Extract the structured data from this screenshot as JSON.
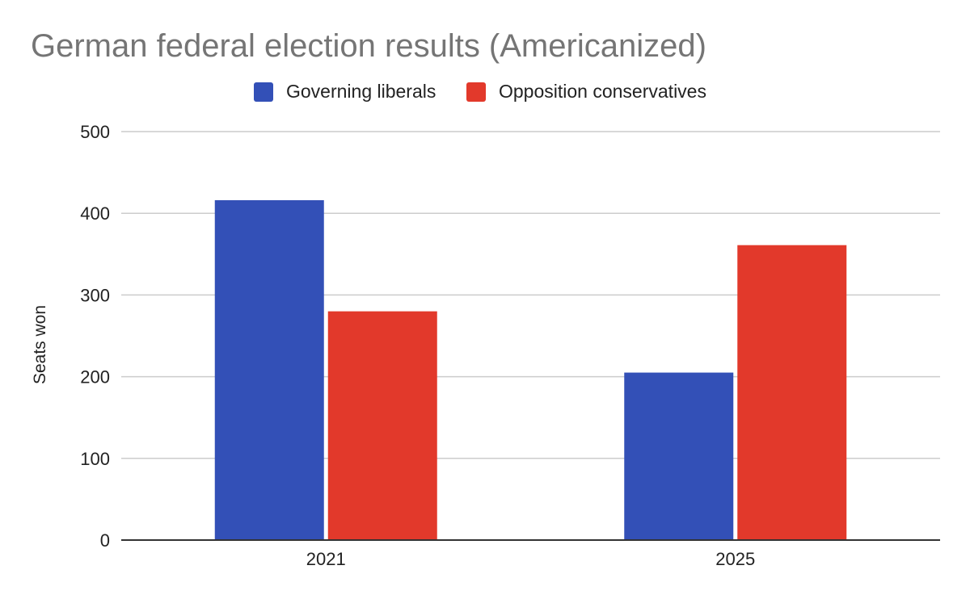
{
  "chart_data": {
    "type": "bar",
    "title": "German federal election results (Americanized)",
    "xlabel": "",
    "ylabel": "Seats won",
    "categories": [
      "2021",
      "2025"
    ],
    "series": [
      {
        "name": "Governing liberals",
        "color": "#3350B7",
        "values": [
          416,
          205
        ]
      },
      {
        "name": "Opposition conservatives",
        "color": "#E2392B",
        "values": [
          280,
          361
        ]
      }
    ],
    "ylim": [
      0,
      500
    ],
    "yticks": [
      "0",
      "100",
      "200",
      "300",
      "400",
      "500"
    ],
    "grid": true,
    "legend_position": "top"
  }
}
